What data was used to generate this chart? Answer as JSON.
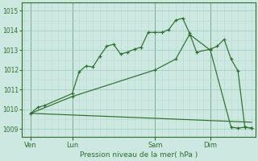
{
  "bg_color": "#cce8e0",
  "line_color": "#2d6e2d",
  "grid_color_minor": "#b8d8d0",
  "grid_color_major": "#a0c8c0",
  "title": "Pression niveau de la mer( hPa )",
  "ylim": [
    1008.6,
    1015.4
  ],
  "yticks": [
    1009,
    1010,
    1011,
    1012,
    1013,
    1014,
    1015
  ],
  "xlim": [
    -0.3,
    33.5
  ],
  "day_labels": [
    "Ven",
    "Lun",
    "Sam",
    "Dim"
  ],
  "day_positions": [
    1,
    7,
    19,
    27
  ],
  "line1_x": [
    1,
    2,
    3,
    7,
    8,
    9,
    10,
    11,
    12,
    13,
    14,
    15,
    16,
    17,
    18,
    19,
    20,
    21,
    22,
    23,
    24,
    25,
    27,
    28,
    29,
    30,
    31,
    32,
    33
  ],
  "line1_y": [
    1009.8,
    1010.1,
    1010.2,
    1010.8,
    1011.9,
    1012.2,
    1012.15,
    1012.7,
    1013.2,
    1013.3,
    1012.8,
    1012.9,
    1013.05,
    1013.15,
    1013.9,
    1013.9,
    1013.9,
    1014.05,
    1014.52,
    1014.62,
    1013.85,
    1012.9,
    1013.05,
    1013.2,
    1013.55,
    1012.55,
    1011.95,
    1009.1,
    1009.05
  ],
  "line2_x": [
    1,
    7,
    19,
    22,
    24,
    27,
    30,
    31,
    32,
    33
  ],
  "line2_y": [
    1009.8,
    1010.65,
    1012.0,
    1012.55,
    1013.8,
    1013.0,
    1009.1,
    1009.05,
    1009.1,
    1009.05
  ],
  "line3_x": [
    1,
    33
  ],
  "line3_y": [
    1009.8,
    1009.35
  ]
}
